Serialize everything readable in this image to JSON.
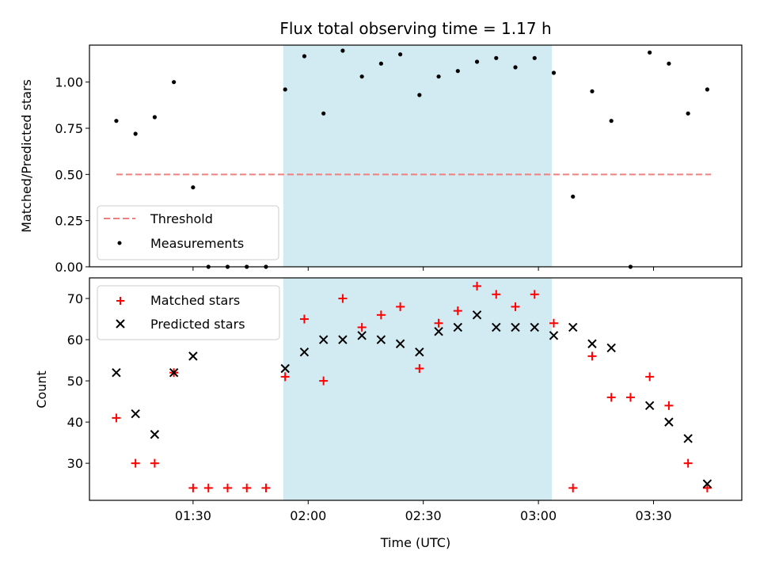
{
  "chart_data": [
    {
      "type": "scatter",
      "title": "Flux total observing time = 1.17 h",
      "xlabel": "",
      "ylabel": "Matched/Predicted stars",
      "ylim": [
        0,
        1.2
      ],
      "yticks": [
        "0.00",
        "0.25",
        "0.50",
        "0.75",
        "1.00"
      ],
      "ytick_values": [
        0,
        0.25,
        0.5,
        0.75,
        1.0
      ],
      "xlim_min": [
        63,
        233
      ],
      "highlight_span_min": [
        113.5,
        183.5
      ],
      "highlight_color": "#add8e6",
      "legend_position": "lower-left",
      "series": [
        {
          "name": "Threshold",
          "kind": "dashed-line",
          "color": "#f08080",
          "x_min": [
            70,
            225
          ],
          "values": [
            0.5,
            0.5
          ]
        },
        {
          "name": "Measurements",
          "kind": "dot",
          "color": "#000000",
          "x_min": [
            70,
            75,
            80,
            85,
            90,
            94,
            99,
            104,
            109,
            114,
            119,
            124,
            129,
            134,
            139,
            144,
            149,
            154,
            159,
            164,
            169,
            174,
            179,
            184,
            189,
            194,
            199,
            204,
            209,
            214,
            219,
            224
          ],
          "values": [
            0.79,
            0.72,
            0.81,
            1.0,
            0.43,
            0.0,
            0.0,
            0.0,
            0.0,
            0.96,
            1.14,
            0.83,
            1.17,
            1.03,
            1.1,
            1.15,
            0.93,
            1.03,
            1.06,
            1.11,
            1.13,
            1.08,
            1.13,
            1.05,
            0.38,
            0.95,
            0.79,
            0.0,
            1.16,
            1.1,
            0.83,
            0.96
          ]
        }
      ]
    },
    {
      "type": "scatter",
      "title": "",
      "xlabel": "Time (UTC)",
      "ylabel": "Count",
      "ylim": [
        21,
        75
      ],
      "yticks": [
        "30",
        "40",
        "50",
        "60",
        "70"
      ],
      "ytick_values": [
        30,
        40,
        50,
        60,
        70
      ],
      "xticks": [
        "01:30",
        "02:00",
        "02:30",
        "03:00",
        "03:30"
      ],
      "xtick_values_min": [
        90,
        120,
        150,
        180,
        210
      ],
      "xlim_min": [
        63,
        233
      ],
      "highlight_span_min": [
        113.5,
        183.5
      ],
      "highlight_color": "#add8e6",
      "legend_position": "upper-left",
      "series": [
        {
          "name": "Matched stars",
          "kind": "plus",
          "color": "#ff0000",
          "x_min": [
            70,
            75,
            80,
            85,
            90,
            94,
            99,
            104,
            109,
            114,
            119,
            124,
            129,
            134,
            139,
            144,
            149,
            154,
            159,
            164,
            169,
            174,
            179,
            184,
            189,
            194,
            199,
            204,
            209,
            214,
            219,
            224
          ],
          "values": [
            41,
            30,
            30,
            52,
            24,
            24,
            24,
            24,
            24,
            51,
            65,
            50,
            70,
            63,
            66,
            68,
            53,
            64,
            67,
            73,
            71,
            68,
            71,
            64,
            24,
            56,
            46,
            46,
            51,
            44,
            30,
            24
          ]
        },
        {
          "name": "Predicted stars",
          "kind": "cross",
          "color": "#000000",
          "x_min": [
            70,
            75,
            80,
            85,
            90,
            114,
            119,
            124,
            129,
            134,
            139,
            144,
            149,
            154,
            159,
            164,
            169,
            174,
            179,
            184,
            189,
            194,
            199,
            209,
            214,
            219,
            224
          ],
          "values": [
            52,
            42,
            37,
            52,
            56,
            53,
            57,
            60,
            60,
            61,
            60,
            59,
            57,
            62,
            63,
            66,
            63,
            63,
            63,
            61,
            63,
            59,
            58,
            44,
            40,
            36,
            25
          ]
        }
      ]
    }
  ]
}
